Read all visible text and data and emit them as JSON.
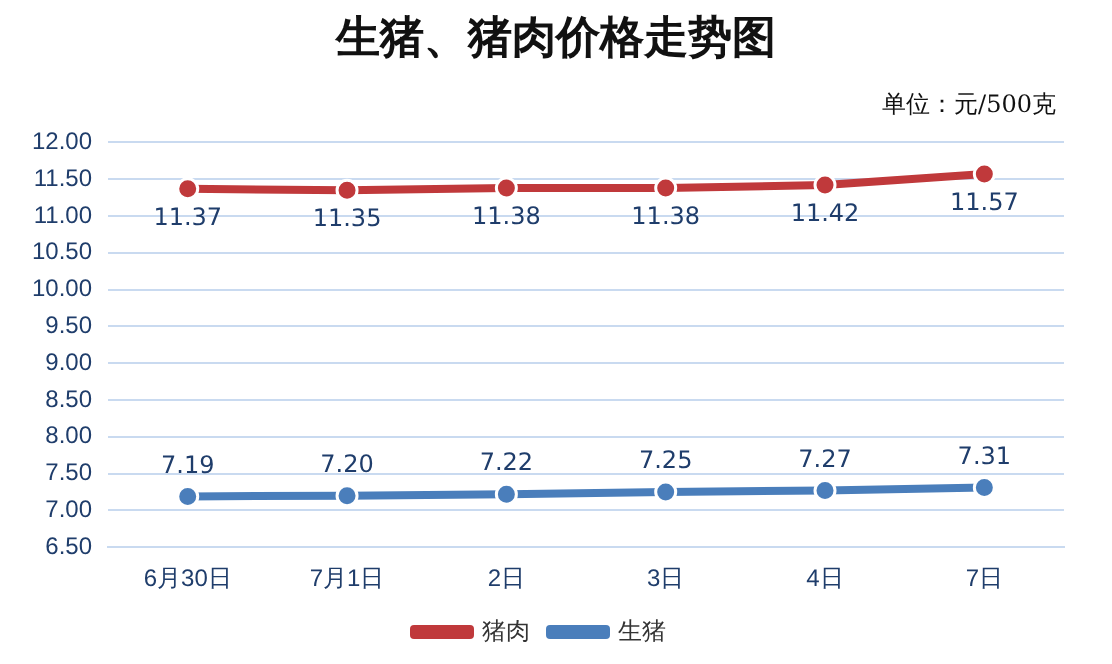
{
  "chart_data": {
    "type": "line",
    "title": "生猪、猪肉价格走势图",
    "annotations": [
      "单位：元/500克"
    ],
    "categories": [
      "6月30日",
      "7月1日",
      "2日",
      "3日",
      "4日",
      "7日"
    ],
    "series": [
      {
        "name": "猪肉",
        "color": "#c0393b",
        "values": [
          11.37,
          11.35,
          11.38,
          11.38,
          11.42,
          11.57
        ],
        "value_labels": [
          "11.37",
          "11.35",
          "11.38",
          "11.38",
          "11.42",
          "11.57"
        ]
      },
      {
        "name": "生猪",
        "color": "#4a7ebb",
        "values": [
          7.19,
          7.2,
          7.22,
          7.25,
          7.27,
          7.31
        ],
        "value_labels": [
          "7.19",
          "7.20",
          "7.22",
          "7.25",
          "7.27",
          "7.31"
        ]
      }
    ],
    "ylim": [
      6.5,
      12
    ],
    "yticks": [
      {
        "value": 6.5,
        "label": "6.50"
      },
      {
        "value": 7,
        "label": "7.00"
      },
      {
        "value": 7.5,
        "label": "7.50"
      },
      {
        "value": 8,
        "label": "8.00"
      },
      {
        "value": 8.5,
        "label": "8.50"
      },
      {
        "value": 9,
        "label": "9.00"
      },
      {
        "value": 9.5,
        "label": "9.50"
      },
      {
        "value": 10,
        "label": "10.00"
      },
      {
        "value": 10.5,
        "label": "10.50"
      },
      {
        "value": 11,
        "label": "11.00"
      },
      {
        "value": 11.5,
        "label": "11.50"
      },
      {
        "value": 12,
        "label": "12.00"
      }
    ],
    "grid": "y",
    "legend": "bottom",
    "marker": "circle",
    "line_style": "solid"
  }
}
